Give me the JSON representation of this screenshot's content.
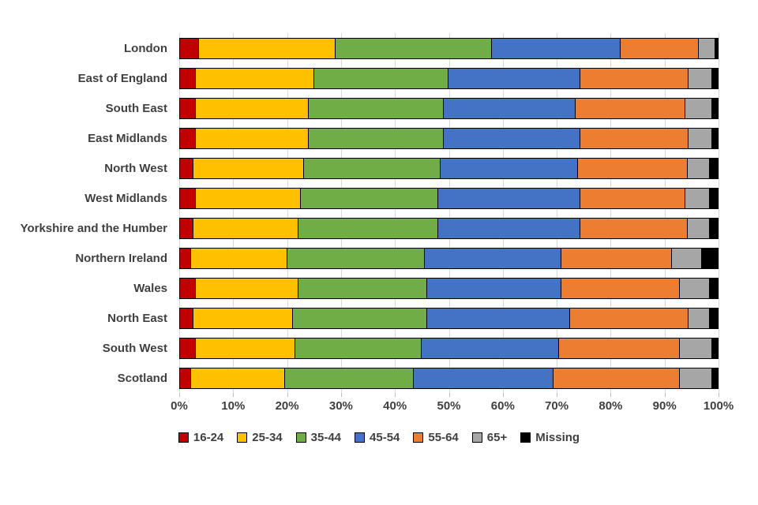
{
  "chart_data": {
    "type": "bar",
    "subtype": "horizontal-stacked-100pct",
    "title": "",
    "xlabel": "",
    "ylabel": "",
    "xlim": [
      0,
      100
    ],
    "x_tick_step": 10,
    "x_tick_labels": [
      "0%",
      "10%",
      "20%",
      "30%",
      "40%",
      "50%",
      "60%",
      "70%",
      "80%",
      "90%",
      "100%"
    ],
    "grid": true,
    "legend_position": "bottom",
    "categories": [
      "London",
      "East of England",
      "South East",
      "East Midlands",
      "North West",
      "West Midlands",
      "Yorkshire and the Humber",
      "Northern Ireland",
      "Wales",
      "North East",
      "South West",
      "Scotland"
    ],
    "series": [
      {
        "name": "16-24",
        "color": "#C00000",
        "values": [
          3.5,
          3,
          3,
          3,
          2.5,
          3,
          2.5,
          2,
          3,
          2.5,
          3,
          2
        ]
      },
      {
        "name": "25-34",
        "color": "#FFC000",
        "values": [
          25.5,
          22,
          21,
          21,
          20.5,
          19.5,
          19.5,
          18,
          19,
          18.5,
          18.5,
          17.5
        ]
      },
      {
        "name": "35-44",
        "color": "#70AD47",
        "values": [
          29,
          25,
          25,
          25,
          25.5,
          25.5,
          26,
          25.5,
          24,
          25,
          23.5,
          24
        ]
      },
      {
        "name": "45-54",
        "color": "#4472C4",
        "values": [
          24,
          24.5,
          24.5,
          25.5,
          25.5,
          26.5,
          26.5,
          25.5,
          25,
          26.5,
          25.5,
          26
        ]
      },
      {
        "name": "55-64",
        "color": "#ED7D31",
        "values": [
          14.5,
          20,
          20.5,
          20,
          20.5,
          19.5,
          20,
          20.5,
          22,
          22,
          22.5,
          23.5
        ]
      },
      {
        "name": "65+",
        "color": "#A6A6A6",
        "values": [
          3,
          4.5,
          5,
          4.5,
          4,
          4.5,
          4,
          5.5,
          5.5,
          4,
          6,
          6
        ]
      },
      {
        "name": "Missing",
        "color": "#000000",
        "values": [
          0.5,
          1,
          1,
          1,
          1.5,
          1.5,
          1.5,
          3,
          1.5,
          1.5,
          1,
          1
        ]
      }
    ],
    "styles": {
      "grid_color": "#D9D9D9",
      "tick_color": "#BFBFBF",
      "text_color": "#404040",
      "bar_border_color": "#000000",
      "background_color": "#FFFFFF"
    }
  }
}
